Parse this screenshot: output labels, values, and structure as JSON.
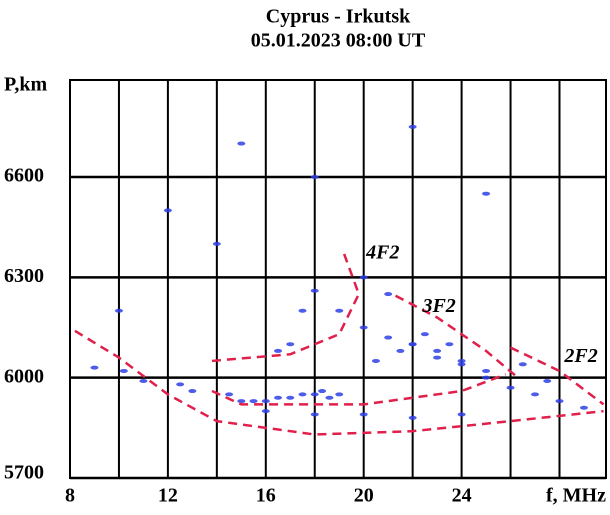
{
  "chart_data": {
    "type": "scatter",
    "title": "Cyprus - Irkutsk",
    "subtitle": "05.01.2023  08:00 UT",
    "ylabel": "P,km",
    "xlabel": "f, MHz",
    "xlim": [
      8,
      29.9
    ],
    "ylim": [
      5700,
      6890
    ],
    "xticks": [
      8,
      12,
      16,
      20,
      24
    ],
    "xgrid": [
      8,
      10,
      12,
      14,
      16,
      18,
      20,
      22,
      24,
      26,
      28
    ],
    "yticks": [
      5700,
      6000,
      6300,
      6600
    ],
    "grid": true,
    "series": [
      {
        "color": "#2f3fe6",
        "x": [
          9,
          10.2,
          11,
          12.5,
          13,
          14.5,
          15,
          15.5,
          16,
          16.5,
          17,
          17.5,
          18,
          18.3,
          18.6,
          19,
          16.5,
          17,
          17.5,
          18,
          19,
          20,
          21,
          22,
          23,
          24,
          25,
          20.5,
          21.5,
          22,
          22.5,
          23,
          23.5,
          24,
          25,
          26,
          27,
          28,
          29,
          26.5,
          27.5,
          16,
          18,
          20,
          22,
          24,
          10,
          12,
          14,
          15,
          18,
          22,
          25,
          20,
          21
        ],
        "y": [
          6030,
          6020,
          5990,
          5980,
          5960,
          5950,
          5930,
          5930,
          5930,
          5940,
          5940,
          5950,
          5950,
          5960,
          5940,
          5950,
          6080,
          6100,
          6200,
          6260,
          6200,
          6150,
          6120,
          6100,
          6060,
          6050,
          6020,
          6050,
          6080,
          6100,
          6130,
          6080,
          6100,
          6040,
          6000,
          5970,
          5950,
          5930,
          5910,
          6040,
          5990,
          5900,
          5890,
          5890,
          5880,
          5890,
          6200,
          6500,
          6400,
          6700,
          6600,
          6750,
          6550,
          6300,
          6250
        ]
      }
    ],
    "curves": [
      {
        "color": "#e0204a",
        "x": [
          8.2,
          10,
          12,
          14,
          18,
          22,
          26,
          29.8
        ],
        "y": [
          6140,
          6060,
          5950,
          5870,
          5830,
          5840,
          5870,
          5900
        ]
      },
      {
        "color": "#e0204a",
        "x": [
          26,
          28,
          29.8
        ],
        "y": [
          6090,
          6020,
          5920
        ]
      },
      {
        "color": "#e0204a",
        "x": [
          21.3,
          23,
          25,
          26.3
        ],
        "y": [
          6245,
          6180,
          6080,
          6000
        ]
      },
      {
        "color": "#e0204a",
        "x": [
          13.8,
          15,
          20,
          24,
          25.8
        ],
        "y": [
          5960,
          5920,
          5920,
          5960,
          6010
        ]
      },
      {
        "color": "#e0204a",
        "x": [
          13.8,
          17,
          19,
          19.8,
          19.2
        ],
        "y": [
          6050,
          6070,
          6130,
          6250,
          6370
        ]
      }
    ],
    "annotations": [
      {
        "text": "4F2",
        "x": 20.1,
        "y": 6370
      },
      {
        "text": "3F2",
        "x": 22.4,
        "y": 6210
      },
      {
        "text": "2F2",
        "x": 28.2,
        "y": 6060
      }
    ]
  }
}
